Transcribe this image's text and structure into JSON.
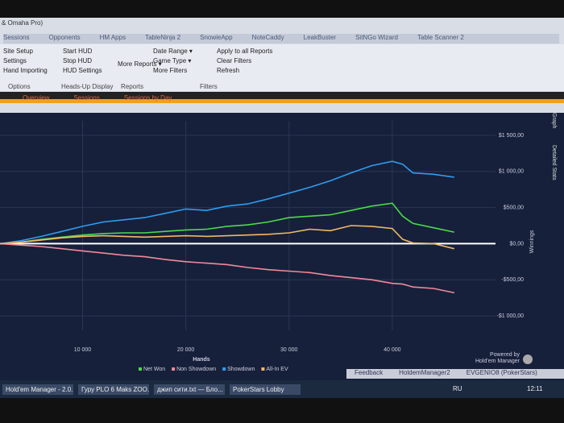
{
  "window": {
    "title": "& Omaha Pro)"
  },
  "menu": [
    "Sessions",
    "Opponents",
    "HM Apps",
    "TableNinja 2",
    "SnowieApp",
    "NoteCaddy",
    "LeakBuster",
    "SitNGo Wizard",
    "Table Scanner 2"
  ],
  "ribbon": {
    "options": {
      "items": [
        "Site Setup",
        "Settings",
        "Hand Importing"
      ],
      "label": "Options"
    },
    "hud": {
      "items": [
        "Start HUD",
        "Stop HUD",
        "HUD Settings"
      ],
      "label": "Heads-Up Display"
    },
    "reports": {
      "items": [
        "More Reports ▾"
      ],
      "label": "Reports"
    },
    "filters": {
      "items": [
        "Date Range ▾",
        "Game Type ▾",
        "More Filters",
        "Apply to all Reports",
        "Clear Filters",
        "Refresh"
      ],
      "label": "Filters"
    }
  },
  "tabs": [
    "Overview",
    "Sessions",
    "Sessions by Day"
  ],
  "side_tabs": [
    "Graph",
    "Detailed Stats"
  ],
  "chart_data": {
    "type": "line",
    "x_label": "Hands",
    "y_label": "Winnings",
    "x": [
      2000,
      4000,
      6000,
      8000,
      10000,
      12000,
      14000,
      16000,
      18000,
      20000,
      22000,
      24000,
      26000,
      28000,
      30000,
      32000,
      34000,
      36000,
      38000,
      40000,
      41000,
      42000,
      44000,
      46000
    ],
    "series": [
      {
        "name": "Net Won",
        "color": "#4cd94c",
        "values": [
          0,
          20,
          60,
          90,
          120,
          140,
          150,
          150,
          170,
          190,
          200,
          240,
          260,
          300,
          360,
          380,
          400,
          460,
          520,
          560,
          380,
          280,
          220,
          160
        ]
      },
      {
        "name": "Non Showdown",
        "color": "#f08a9a",
        "values": [
          0,
          -20,
          -40,
          -70,
          -100,
          -130,
          -160,
          -180,
          -220,
          -250,
          -270,
          -290,
          -330,
          -360,
          -380,
          -400,
          -440,
          -470,
          -500,
          -550,
          -560,
          -600,
          -620,
          -680
        ]
      },
      {
        "name": "Showdown",
        "color": "#2e9cf0",
        "values": [
          0,
          40,
          100,
          170,
          240,
          300,
          330,
          360,
          420,
          480,
          460,
          520,
          550,
          620,
          700,
          780,
          870,
          980,
          1080,
          1140,
          1100,
          980,
          960,
          920
        ]
      },
      {
        "name": "All-In EV",
        "color": "#f2b766",
        "values": [
          0,
          20,
          50,
          80,
          100,
          110,
          100,
          90,
          100,
          110,
          100,
          110,
          120,
          130,
          150,
          200,
          180,
          250,
          240,
          210,
          60,
          10,
          0,
          -70
        ]
      }
    ],
    "xlim": [
      2000,
      50000
    ],
    "ylim": [
      -1200,
      1700
    ],
    "xticks": [
      {
        "value": 10000,
        "label": "10 000"
      },
      {
        "value": 20000,
        "label": "20 000"
      },
      {
        "value": 30000,
        "label": "30 000"
      },
      {
        "value": 40000,
        "label": "40 000"
      }
    ],
    "yticks": [
      {
        "value": 1500,
        "label": "$1 500,00"
      },
      {
        "value": 1000,
        "label": "$1 000,00"
      },
      {
        "value": 500,
        "label": "$500,00"
      },
      {
        "value": 0,
        "label": "$0,00"
      },
      {
        "value": -500,
        "label": "-$500,00"
      },
      {
        "value": -1000,
        "label": "-$1 000,00"
      }
    ],
    "grid": true
  },
  "branding": {
    "powered": "Powered by",
    "name": "Hold'em Manager"
  },
  "status": [
    "Feedback",
    "HoldemManager2",
    "EVGENIO8 (PokerStars)"
  ],
  "taskbar": {
    "items": [
      "Hold'em Manager - 2.0...",
      "Гуру PLO 6 Maks ZOO...",
      "джип сити.txt — Бло...",
      "PokerStars Lobby"
    ],
    "lang": "RU",
    "time": "12:11"
  }
}
